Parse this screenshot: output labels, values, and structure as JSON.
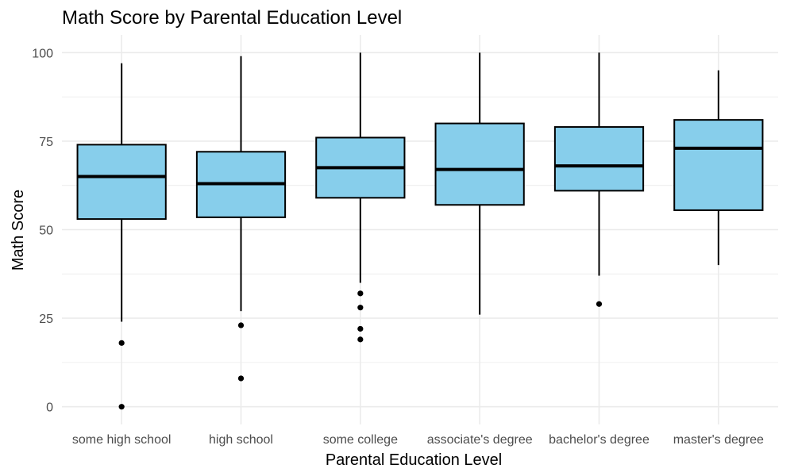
{
  "chart_data": {
    "type": "box",
    "title": "Math Score by Parental Education Level",
    "xlabel": "Parental Education Level",
    "ylabel": "Math Score",
    "ylim": [
      -5,
      105
    ],
    "yticks": [
      0,
      25,
      50,
      75,
      100
    ],
    "grid": true,
    "legend": "none",
    "fill_color": "#87ceeb",
    "stroke_color": "#000000",
    "categories": [
      "some high school",
      "high school",
      "some college",
      "associate's degree",
      "bachelor's degree",
      "master's degree"
    ],
    "boxes": [
      {
        "category": "some high school",
        "whisker_low": 24,
        "q1": 53,
        "median": 65,
        "q3": 74,
        "whisker_high": 97,
        "outliers": [
          18,
          0
        ]
      },
      {
        "category": "high school",
        "whisker_low": 27,
        "q1": 53.5,
        "median": 63,
        "q3": 72,
        "whisker_high": 99,
        "outliers": [
          23,
          8
        ]
      },
      {
        "category": "some college",
        "whisker_low": 35,
        "q1": 59,
        "median": 67.5,
        "q3": 76,
        "whisker_high": 100,
        "outliers": [
          32,
          28,
          22,
          19
        ]
      },
      {
        "category": "associate's degree",
        "whisker_low": 26,
        "q1": 57,
        "median": 67,
        "q3": 80,
        "whisker_high": 100,
        "outliers": []
      },
      {
        "category": "bachelor's degree",
        "whisker_low": 37,
        "q1": 61,
        "median": 68,
        "q3": 79,
        "whisker_high": 100,
        "outliers": [
          29
        ]
      },
      {
        "category": "master's degree",
        "whisker_low": 40,
        "q1": 55.5,
        "median": 73,
        "q3": 81,
        "whisker_high": 95,
        "outliers": []
      }
    ]
  }
}
